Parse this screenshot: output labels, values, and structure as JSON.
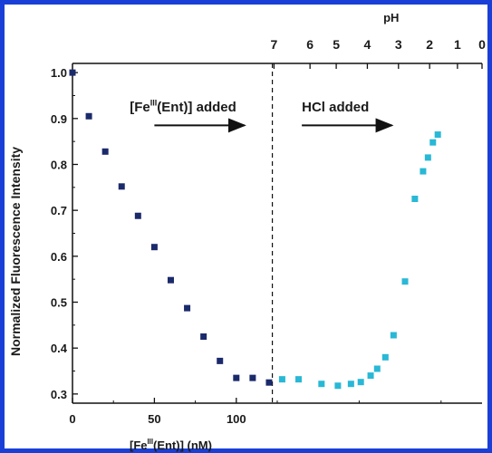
{
  "chart_data": {
    "type": "scatter",
    "xlabel_prefix": "[Fe",
    "xlabel_sup": "III",
    "xlabel_suffix": "(Ent)] (nM)",
    "ylabel": "Normalized Fluorescence Intensity",
    "top_axis_label": "pH",
    "xlim": [
      0,
      250
    ],
    "ylim": [
      0.28,
      1.02
    ],
    "x_ticks": [
      0,
      50,
      100
    ],
    "y_ticks": [
      0.3,
      0.4,
      0.5,
      0.6,
      0.7,
      0.8,
      0.9,
      1.0
    ],
    "ph_ticks": [
      {
        "label": "7",
        "x": 123
      },
      {
        "label": "6",
        "x": 145
      },
      {
        "label": "5",
        "x": 161
      },
      {
        "label": "4",
        "x": 180
      },
      {
        "label": "3",
        "x": 199
      },
      {
        "label": "2",
        "x": 218
      },
      {
        "label": "1",
        "x": 235
      },
      {
        "label": "0",
        "x": 250
      }
    ],
    "divider_x": 122,
    "annotations": [
      {
        "prefix": "[Fe",
        "sup": "III",
        "suffix": "(Ent)] added",
        "x": 35,
        "y": 0.915,
        "arrow_from": 50,
        "arrow_to": 105,
        "arrow_y": 0.885
      },
      {
        "prefix": "HCl added",
        "sup": "",
        "suffix": "",
        "x": 140,
        "y": 0.915,
        "arrow_from": 140,
        "arrow_to": 195,
        "arrow_y": 0.885
      }
    ],
    "series": [
      {
        "color": "#1b2a6b",
        "points": [
          [
            0,
            1.0
          ],
          [
            10,
            0.905
          ],
          [
            20,
            0.828
          ],
          [
            30,
            0.752
          ],
          [
            40,
            0.688
          ],
          [
            50,
            0.62
          ],
          [
            60,
            0.548
          ],
          [
            70,
            0.487
          ],
          [
            80,
            0.425
          ],
          [
            90,
            0.372
          ],
          [
            100,
            0.335
          ],
          [
            110,
            0.335
          ],
          [
            120,
            0.325
          ]
        ]
      },
      {
        "color": "#29b8d6",
        "points": [
          [
            128,
            0.332
          ],
          [
            138,
            0.332
          ],
          [
            152,
            0.322
          ],
          [
            162,
            0.318
          ],
          [
            170,
            0.322
          ],
          [
            176,
            0.326
          ],
          [
            182,
            0.34
          ],
          [
            186,
            0.355
          ],
          [
            191,
            0.38
          ],
          [
            196,
            0.428
          ],
          [
            203,
            0.545
          ],
          [
            209,
            0.725
          ],
          [
            214,
            0.785
          ],
          [
            217,
            0.815
          ],
          [
            220,
            0.848
          ],
          [
            223,
            0.865
          ]
        ]
      }
    ]
  }
}
